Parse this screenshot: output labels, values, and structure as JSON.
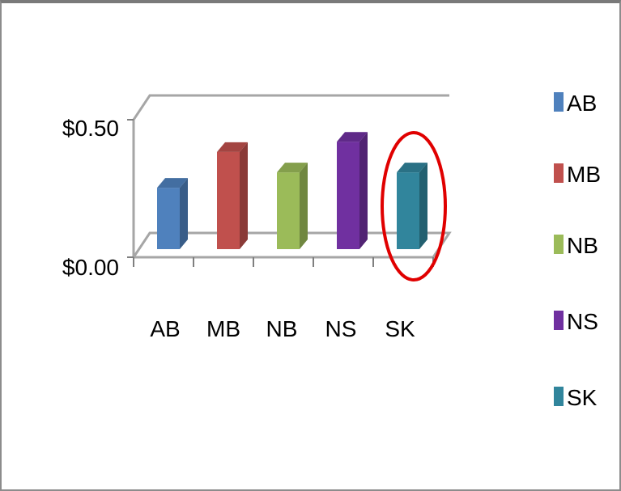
{
  "chart_data": {
    "type": "bar",
    "title": "",
    "xlabel": "",
    "ylabel": "",
    "categories": [
      "AB",
      "MB",
      "NB",
      "NS",
      "SK"
    ],
    "values": [
      0.24,
      0.38,
      0.3,
      0.42,
      0.3
    ],
    "ylim": [
      0,
      0.5
    ],
    "y_tick_labels": [
      "$0.00",
      "$0.50"
    ],
    "y_tick_values": [
      0,
      0.5
    ],
    "colors": [
      "#4f81bd",
      "#c0504d",
      "#9bbb59",
      "#7030a0",
      "#31859c"
    ],
    "legend": {
      "placement": "right",
      "entries": [
        "AB",
        "MB",
        "NB",
        "NS",
        "SK"
      ]
    },
    "grid": false,
    "style": "3d-column",
    "annotation": {
      "shape": "ellipse",
      "color": "#e00000",
      "highlights": "SK"
    }
  }
}
